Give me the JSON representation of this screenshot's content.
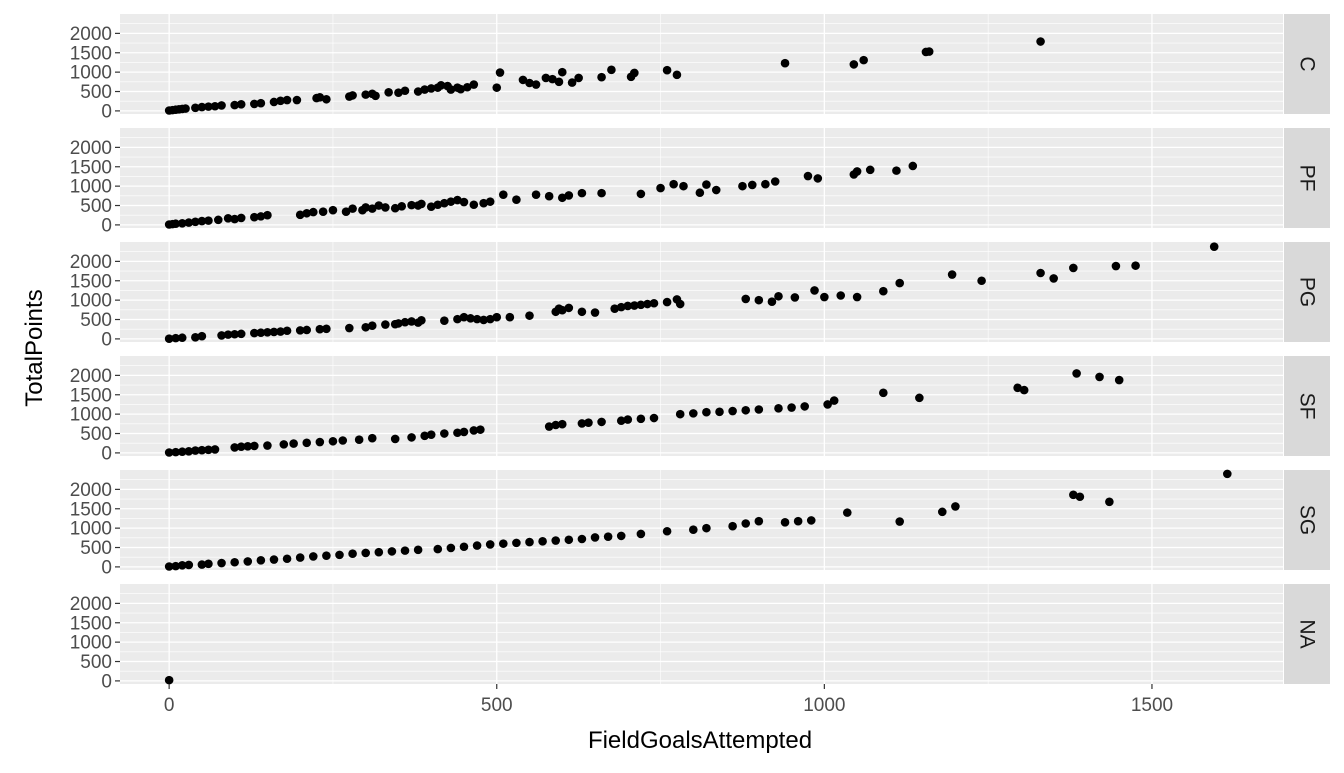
{
  "chart_data": {
    "type": "scatter",
    "title": "",
    "xlabel": "FieldGoalsAttempted",
    "ylabel": "TotalPoints",
    "xlim": [
      -75,
      1700
    ],
    "ylim": [
      -80,
      2500
    ],
    "x_ticks": [
      0,
      500,
      1000,
      1500
    ],
    "y_ticks": [
      0,
      500,
      1000,
      1500,
      2000
    ],
    "grid": true,
    "facet_by": "position",
    "point_color": "#000000",
    "panel_background": "#ebebeb",
    "strip_background": "#d9d9d9",
    "panels": [
      {
        "label": "C",
        "points": [
          [
            0,
            10
          ],
          [
            5,
            20
          ],
          [
            10,
            30
          ],
          [
            15,
            40
          ],
          [
            20,
            50
          ],
          [
            25,
            60
          ],
          [
            40,
            80
          ],
          [
            50,
            100
          ],
          [
            60,
            110
          ],
          [
            70,
            120
          ],
          [
            80,
            140
          ],
          [
            100,
            150
          ],
          [
            110,
            170
          ],
          [
            130,
            180
          ],
          [
            140,
            200
          ],
          [
            160,
            230
          ],
          [
            170,
            260
          ],
          [
            180,
            280
          ],
          [
            195,
            280
          ],
          [
            225,
            330
          ],
          [
            230,
            350
          ],
          [
            240,
            300
          ],
          [
            275,
            370
          ],
          [
            280,
            400
          ],
          [
            300,
            420
          ],
          [
            310,
            440
          ],
          [
            315,
            390
          ],
          [
            335,
            480
          ],
          [
            350,
            470
          ],
          [
            360,
            520
          ],
          [
            380,
            500
          ],
          [
            390,
            550
          ],
          [
            400,
            580
          ],
          [
            410,
            600
          ],
          [
            415,
            660
          ],
          [
            425,
            640
          ],
          [
            430,
            550
          ],
          [
            440,
            600
          ],
          [
            445,
            560
          ],
          [
            455,
            610
          ],
          [
            465,
            680
          ],
          [
            500,
            600
          ],
          [
            505,
            990
          ],
          [
            540,
            800
          ],
          [
            550,
            720
          ],
          [
            560,
            680
          ],
          [
            575,
            850
          ],
          [
            585,
            820
          ],
          [
            595,
            750
          ],
          [
            600,
            1000
          ],
          [
            615,
            730
          ],
          [
            625,
            850
          ],
          [
            660,
            870
          ],
          [
            675,
            1060
          ],
          [
            705,
            880
          ],
          [
            710,
            980
          ],
          [
            760,
            1050
          ],
          [
            775,
            930
          ],
          [
            940,
            1230
          ],
          [
            1045,
            1200
          ],
          [
            1060,
            1310
          ],
          [
            1155,
            1520
          ],
          [
            1160,
            1530
          ],
          [
            1330,
            1790
          ]
        ]
      },
      {
        "label": "PF",
        "points": [
          [
            0,
            10
          ],
          [
            5,
            20
          ],
          [
            10,
            30
          ],
          [
            20,
            40
          ],
          [
            30,
            60
          ],
          [
            40,
            80
          ],
          [
            50,
            100
          ],
          [
            60,
            110
          ],
          [
            75,
            130
          ],
          [
            90,
            170
          ],
          [
            100,
            150
          ],
          [
            110,
            180
          ],
          [
            130,
            200
          ],
          [
            140,
            220
          ],
          [
            150,
            250
          ],
          [
            200,
            260
          ],
          [
            210,
            300
          ],
          [
            220,
            330
          ],
          [
            235,
            340
          ],
          [
            250,
            380
          ],
          [
            270,
            340
          ],
          [
            280,
            420
          ],
          [
            295,
            380
          ],
          [
            300,
            450
          ],
          [
            310,
            420
          ],
          [
            320,
            500
          ],
          [
            330,
            450
          ],
          [
            345,
            430
          ],
          [
            355,
            480
          ],
          [
            370,
            510
          ],
          [
            380,
            500
          ],
          [
            385,
            540
          ],
          [
            400,
            470
          ],
          [
            410,
            520
          ],
          [
            420,
            560
          ],
          [
            430,
            600
          ],
          [
            440,
            640
          ],
          [
            450,
            590
          ],
          [
            465,
            520
          ],
          [
            480,
            560
          ],
          [
            490,
            600
          ],
          [
            510,
            780
          ],
          [
            530,
            650
          ],
          [
            560,
            780
          ],
          [
            580,
            740
          ],
          [
            600,
            700
          ],
          [
            610,
            760
          ],
          [
            630,
            820
          ],
          [
            660,
            820
          ],
          [
            720,
            800
          ],
          [
            750,
            950
          ],
          [
            770,
            1050
          ],
          [
            785,
            1000
          ],
          [
            810,
            830
          ],
          [
            820,
            1040
          ],
          [
            835,
            900
          ],
          [
            875,
            1000
          ],
          [
            890,
            1030
          ],
          [
            910,
            1050
          ],
          [
            925,
            1120
          ],
          [
            975,
            1260
          ],
          [
            990,
            1200
          ],
          [
            1045,
            1300
          ],
          [
            1050,
            1380
          ],
          [
            1070,
            1420
          ],
          [
            1110,
            1400
          ],
          [
            1135,
            1520
          ]
        ]
      },
      {
        "label": "PG",
        "points": [
          [
            0,
            5
          ],
          [
            10,
            20
          ],
          [
            20,
            30
          ],
          [
            40,
            40
          ],
          [
            50,
            70
          ],
          [
            80,
            90
          ],
          [
            90,
            110
          ],
          [
            100,
            120
          ],
          [
            110,
            130
          ],
          [
            130,
            150
          ],
          [
            140,
            160
          ],
          [
            150,
            170
          ],
          [
            160,
            180
          ],
          [
            170,
            190
          ],
          [
            180,
            210
          ],
          [
            200,
            220
          ],
          [
            210,
            230
          ],
          [
            230,
            250
          ],
          [
            240,
            260
          ],
          [
            275,
            280
          ],
          [
            300,
            300
          ],
          [
            310,
            340
          ],
          [
            330,
            370
          ],
          [
            345,
            380
          ],
          [
            350,
            400
          ],
          [
            360,
            430
          ],
          [
            370,
            450
          ],
          [
            380,
            420
          ],
          [
            385,
            480
          ],
          [
            420,
            470
          ],
          [
            440,
            510
          ],
          [
            450,
            560
          ],
          [
            460,
            530
          ],
          [
            470,
            510
          ],
          [
            480,
            490
          ],
          [
            490,
            510
          ],
          [
            500,
            560
          ],
          [
            520,
            560
          ],
          [
            550,
            600
          ],
          [
            590,
            700
          ],
          [
            595,
            780
          ],
          [
            600,
            740
          ],
          [
            610,
            800
          ],
          [
            630,
            700
          ],
          [
            650,
            680
          ],
          [
            680,
            780
          ],
          [
            690,
            820
          ],
          [
            700,
            850
          ],
          [
            710,
            860
          ],
          [
            720,
            880
          ],
          [
            730,
            900
          ],
          [
            740,
            920
          ],
          [
            760,
            950
          ],
          [
            775,
            1020
          ],
          [
            780,
            900
          ],
          [
            880,
            1030
          ],
          [
            900,
            1000
          ],
          [
            920,
            960
          ],
          [
            930,
            1100
          ],
          [
            955,
            1070
          ],
          [
            985,
            1250
          ],
          [
            1000,
            1080
          ],
          [
            1025,
            1120
          ],
          [
            1050,
            1080
          ],
          [
            1090,
            1230
          ],
          [
            1115,
            1440
          ],
          [
            1195,
            1660
          ],
          [
            1240,
            1500
          ],
          [
            1330,
            1700
          ],
          [
            1350,
            1560
          ],
          [
            1380,
            1830
          ],
          [
            1445,
            1880
          ],
          [
            1475,
            1890
          ],
          [
            1595,
            2380
          ]
        ]
      },
      {
        "label": "SF",
        "points": [
          [
            0,
            10
          ],
          [
            10,
            20
          ],
          [
            20,
            30
          ],
          [
            30,
            40
          ],
          [
            40,
            60
          ],
          [
            50,
            70
          ],
          [
            60,
            80
          ],
          [
            70,
            90
          ],
          [
            100,
            140
          ],
          [
            110,
            160
          ],
          [
            120,
            170
          ],
          [
            130,
            180
          ],
          [
            150,
            190
          ],
          [
            175,
            220
          ],
          [
            190,
            240
          ],
          [
            210,
            260
          ],
          [
            230,
            280
          ],
          [
            250,
            300
          ],
          [
            265,
            320
          ],
          [
            290,
            340
          ],
          [
            310,
            380
          ],
          [
            345,
            360
          ],
          [
            370,
            400
          ],
          [
            390,
            440
          ],
          [
            400,
            470
          ],
          [
            420,
            500
          ],
          [
            440,
            520
          ],
          [
            450,
            540
          ],
          [
            465,
            580
          ],
          [
            475,
            600
          ],
          [
            580,
            680
          ],
          [
            590,
            720
          ],
          [
            600,
            740
          ],
          [
            630,
            760
          ],
          [
            640,
            780
          ],
          [
            660,
            800
          ],
          [
            690,
            830
          ],
          [
            700,
            860
          ],
          [
            720,
            880
          ],
          [
            740,
            900
          ],
          [
            780,
            1000
          ],
          [
            800,
            1020
          ],
          [
            820,
            1050
          ],
          [
            840,
            1060
          ],
          [
            860,
            1080
          ],
          [
            880,
            1100
          ],
          [
            900,
            1120
          ],
          [
            930,
            1150
          ],
          [
            950,
            1170
          ],
          [
            970,
            1200
          ],
          [
            1005,
            1250
          ],
          [
            1015,
            1350
          ],
          [
            1090,
            1550
          ],
          [
            1145,
            1420
          ],
          [
            1295,
            1680
          ],
          [
            1305,
            1620
          ],
          [
            1385,
            2050
          ],
          [
            1420,
            1960
          ],
          [
            1450,
            1880
          ]
        ]
      },
      {
        "label": "SG",
        "points": [
          [
            0,
            10
          ],
          [
            10,
            20
          ],
          [
            20,
            40
          ],
          [
            30,
            50
          ],
          [
            50,
            60
          ],
          [
            60,
            80
          ],
          [
            80,
            100
          ],
          [
            100,
            120
          ],
          [
            120,
            140
          ],
          [
            140,
            170
          ],
          [
            160,
            190
          ],
          [
            180,
            210
          ],
          [
            200,
            240
          ],
          [
            220,
            270
          ],
          [
            240,
            290
          ],
          [
            260,
            310
          ],
          [
            280,
            340
          ],
          [
            300,
            360
          ],
          [
            320,
            380
          ],
          [
            340,
            400
          ],
          [
            360,
            420
          ],
          [
            380,
            440
          ],
          [
            410,
            460
          ],
          [
            430,
            490
          ],
          [
            450,
            520
          ],
          [
            470,
            550
          ],
          [
            490,
            580
          ],
          [
            510,
            600
          ],
          [
            530,
            620
          ],
          [
            550,
            640
          ],
          [
            570,
            660
          ],
          [
            590,
            680
          ],
          [
            610,
            700
          ],
          [
            630,
            720
          ],
          [
            650,
            760
          ],
          [
            670,
            780
          ],
          [
            690,
            800
          ],
          [
            720,
            850
          ],
          [
            760,
            920
          ],
          [
            800,
            960
          ],
          [
            820,
            1000
          ],
          [
            860,
            1050
          ],
          [
            880,
            1120
          ],
          [
            900,
            1180
          ],
          [
            940,
            1150
          ],
          [
            960,
            1180
          ],
          [
            980,
            1200
          ],
          [
            1035,
            1400
          ],
          [
            1115,
            1170
          ],
          [
            1180,
            1420
          ],
          [
            1200,
            1560
          ],
          [
            1380,
            1860
          ],
          [
            1390,
            1810
          ],
          [
            1435,
            1680
          ],
          [
            1615,
            2400
          ]
        ]
      },
      {
        "label": "NA",
        "points": [
          [
            0,
            20
          ]
        ]
      }
    ]
  }
}
